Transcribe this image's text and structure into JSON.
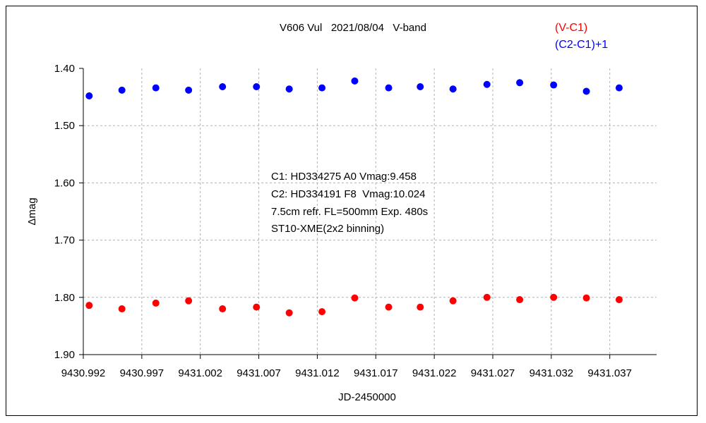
{
  "chart_data": {
    "type": "scatter",
    "title": "V606 Vul   2021/08/04   V-band",
    "xlabel": "JD-2450000",
    "ylabel": "Δmag",
    "xlim": [
      9430.992,
      9431.041
    ],
    "ylim": [
      1.9,
      1.4
    ],
    "y_inverted": true,
    "grid": true,
    "legend_placement": "top-right",
    "x_ticks": [
      "9430.992",
      "9430.997",
      "9431.002",
      "9431.007",
      "9431.012",
      "9431.017",
      "9431.022",
      "9431.027",
      "9431.032",
      "9431.037"
    ],
    "y_ticks": [
      "1.40",
      "1.50",
      "1.60",
      "1.70",
      "1.80",
      "1.90"
    ],
    "series": [
      {
        "name": "(V-C1)",
        "color": "#ff0000",
        "x": [
          9430.9925,
          9430.9953,
          9430.9982,
          9431.001,
          9431.0039,
          9431.0068,
          9431.0096,
          9431.0124,
          9431.0152,
          9431.0181,
          9431.0208,
          9431.0236,
          9431.0265,
          9431.0293,
          9431.0322,
          9431.035,
          9431.0378
        ],
        "y": [
          1.814,
          1.82,
          1.81,
          1.806,
          1.82,
          1.817,
          1.827,
          1.825,
          1.801,
          1.817,
          1.817,
          1.806,
          1.8,
          1.804,
          1.8,
          1.801,
          1.804
        ]
      },
      {
        "name": "(C2-C1)+1",
        "color": "#0000ff",
        "x": [
          9430.9925,
          9430.9953,
          9430.9982,
          9431.001,
          9431.0039,
          9431.0068,
          9431.0096,
          9431.0124,
          9431.0152,
          9431.0181,
          9431.0208,
          9431.0236,
          9431.0265,
          9431.0293,
          9431.0322,
          9431.035,
          9431.0378
        ],
        "y": [
          1.448,
          1.438,
          1.434,
          1.438,
          1.432,
          1.432,
          1.436,
          1.434,
          1.422,
          1.434,
          1.432,
          1.436,
          1.428,
          1.425,
          1.429,
          1.44,
          1.434
        ]
      }
    ],
    "annotations": [
      "C1: HD334275 A0 Vmag:9.458",
      "C2: HD334191 F8  Vmag:10.024",
      "7.5cm refr. FL=500mm Exp. 480s",
      "ST10-XME(2x2 binning)"
    ]
  }
}
